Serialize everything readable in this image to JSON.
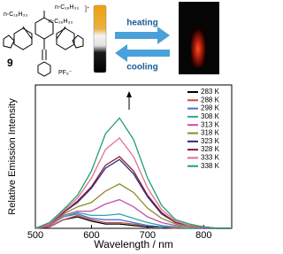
{
  "scheme": {
    "substituents": [
      "n-C₁₆H₃₃",
      "n-C₁₆H₃₃",
      "n-C₁₆H₃₃"
    ],
    "charge": "]⁺",
    "compound": "9",
    "counterion": "PF₆⁻",
    "heating": "heating",
    "cooling": "cooling"
  },
  "chart_data": {
    "type": "line",
    "x_label": "Wavelength / nm",
    "y_label": "Relative Emission Intensity",
    "x": [
      500,
      525,
      550,
      575,
      600,
      625,
      650,
      675,
      700,
      725,
      750,
      775,
      800,
      825,
      850
    ],
    "xlim": [
      500,
      850
    ],
    "xticks": [
      500,
      600,
      700,
      800
    ],
    "ylim": [
      0,
      100
    ],
    "legend": "upper right",
    "series": [
      {
        "name": "283 K",
        "color": "#000000",
        "values": [
          0,
          1,
          6,
          8,
          5,
          3,
          3,
          2,
          1,
          1,
          0,
          0,
          0,
          0,
          0
        ]
      },
      {
        "name": "288 K",
        "color": "#c0504d",
        "values": [
          0,
          1,
          6,
          9,
          6,
          4,
          4,
          3,
          2,
          1,
          0,
          0,
          0,
          0,
          0
        ]
      },
      {
        "name": "298 K",
        "color": "#4f6fd0",
        "values": [
          0,
          2,
          8,
          10,
          7,
          6,
          6,
          4,
          2,
          1,
          1,
          0,
          0,
          0,
          0
        ]
      },
      {
        "name": "308 K",
        "color": "#2aa9a0",
        "values": [
          0,
          2,
          8,
          11,
          9,
          9,
          10,
          7,
          4,
          2,
          1,
          0,
          0,
          0,
          0
        ]
      },
      {
        "name": "313 K",
        "color": "#c050b0",
        "values": [
          0,
          2,
          9,
          12,
          12,
          17,
          20,
          15,
          8,
          4,
          2,
          1,
          0,
          0,
          0
        ]
      },
      {
        "name": "318 K",
        "color": "#8a8a2a",
        "values": [
          0,
          3,
          10,
          15,
          18,
          26,
          31,
          25,
          14,
          7,
          3,
          1,
          1,
          0,
          0
        ]
      },
      {
        "name": "323 K",
        "color": "#2a2a80",
        "values": [
          0,
          3,
          11,
          18,
          28,
          42,
          48,
          38,
          22,
          10,
          4,
          2,
          1,
          0,
          0
        ]
      },
      {
        "name": "328 K",
        "color": "#8b1a3a",
        "values": [
          0,
          3,
          11,
          19,
          29,
          44,
          50,
          40,
          23,
          11,
          4,
          2,
          1,
          0,
          0
        ]
      },
      {
        "name": "333 K",
        "color": "#e07090",
        "values": [
          0,
          3,
          12,
          21,
          35,
          55,
          63,
          50,
          28,
          13,
          5,
          2,
          1,
          0,
          0
        ]
      },
      {
        "name": "338 K",
        "color": "#20a070",
        "values": [
          0,
          4,
          13,
          23,
          40,
          66,
          77,
          62,
          35,
          16,
          6,
          3,
          1,
          0,
          0
        ]
      }
    ]
  }
}
